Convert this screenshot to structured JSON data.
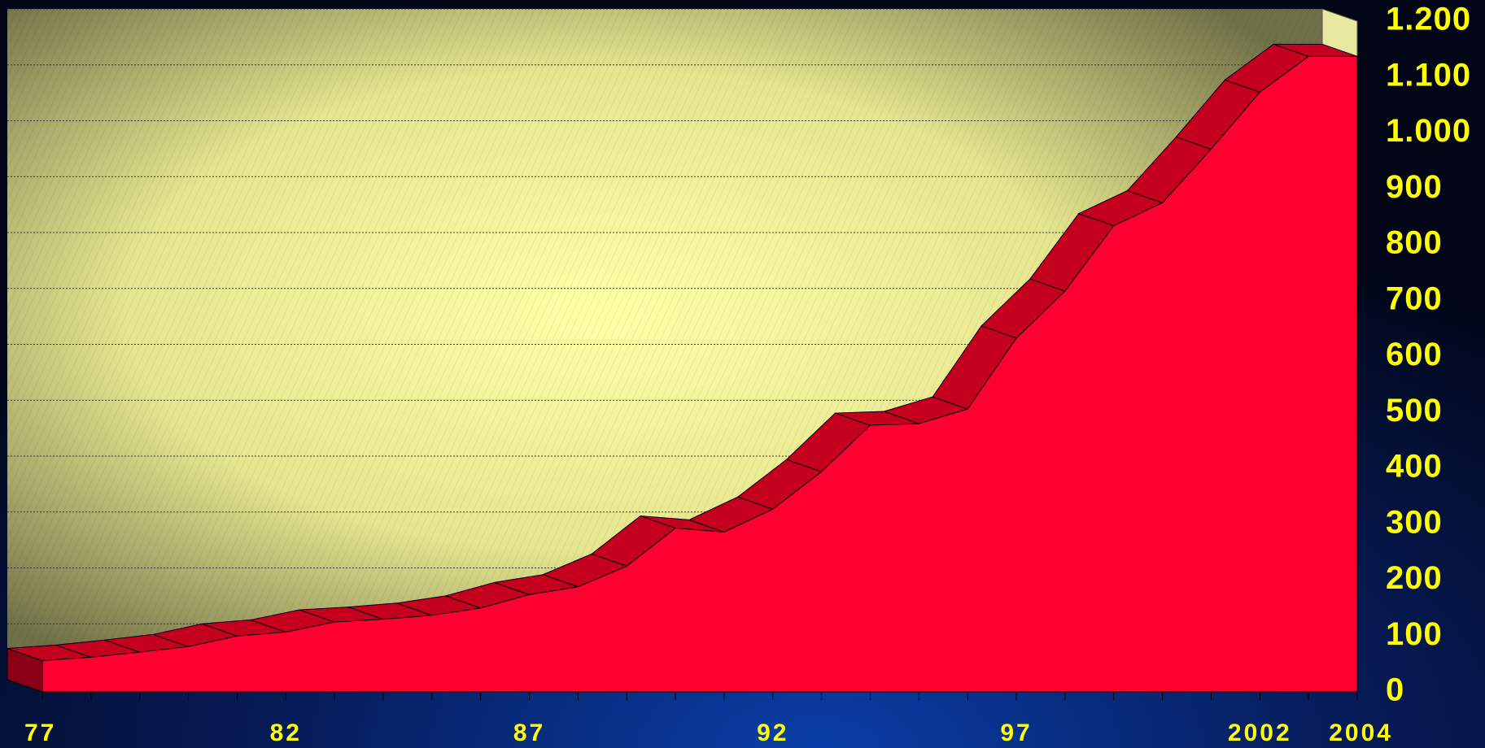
{
  "chart_data": {
    "type": "area3d",
    "categories": [
      "77",
      null,
      null,
      null,
      null,
      "82",
      null,
      null,
      null,
      null,
      "87",
      null,
      null,
      null,
      null,
      "92",
      null,
      null,
      null,
      null,
      "97",
      null,
      null,
      null,
      null,
      "2002",
      null,
      "2004"
    ],
    "values": [
      56,
      62,
      71,
      81,
      100,
      107,
      125,
      130,
      137,
      150,
      174,
      188,
      225,
      293,
      286,
      327,
      394,
      477,
      480,
      506,
      633,
      717,
      834,
      875,
      971,
      1073,
      1137,
      1137
    ],
    "color": "#ff0030",
    "ylim": [
      0,
      1200
    ],
    "yticks": [
      0,
      100,
      200,
      300,
      400,
      500,
      600,
      700,
      800,
      900,
      {
        "value": 1000,
        "label": "1.000"
      },
      {
        "value": 1100,
        "label": "1.100"
      },
      {
        "value": 1200,
        "label": "1.200"
      }
    ],
    "grid": true
  }
}
